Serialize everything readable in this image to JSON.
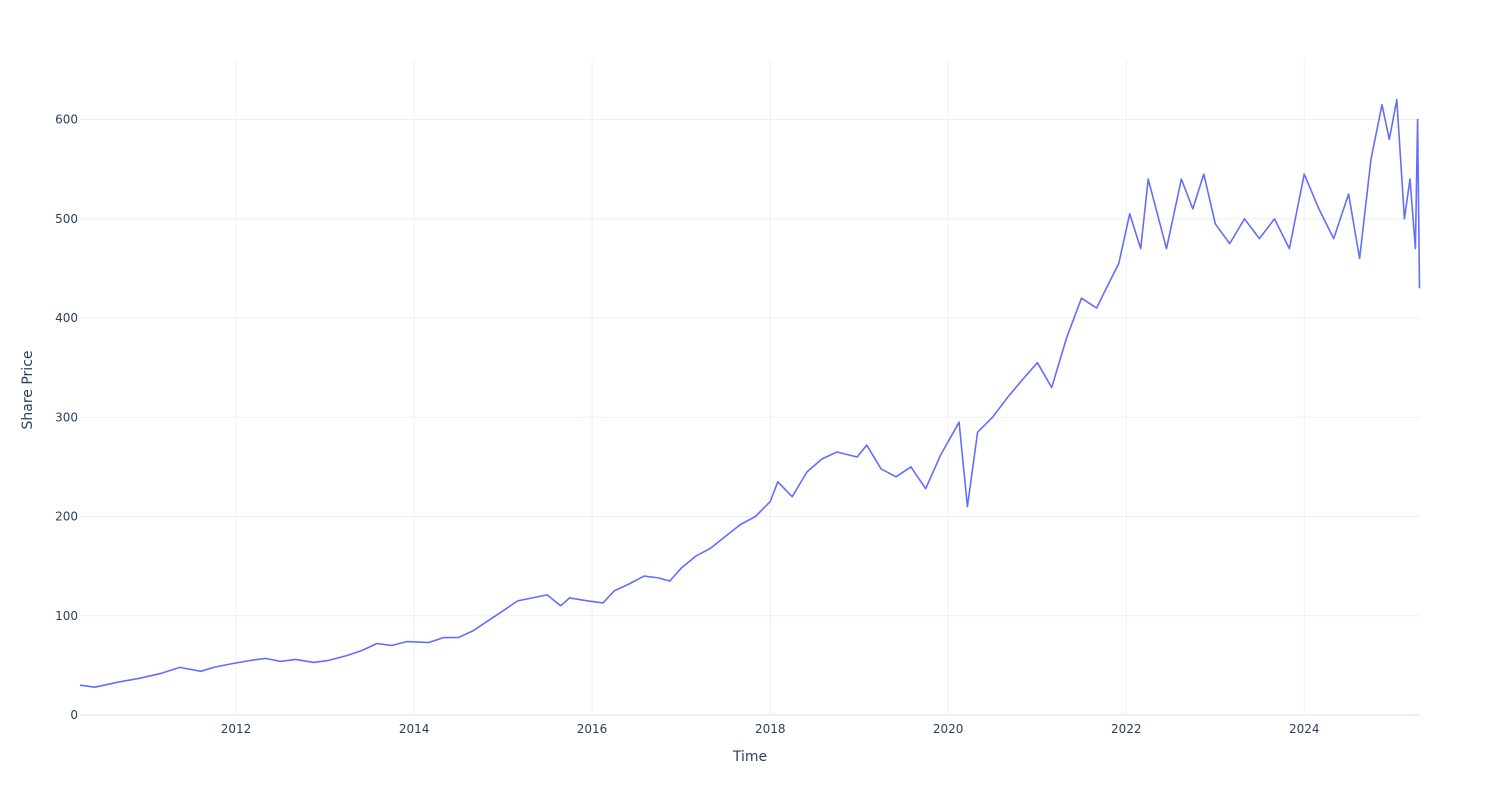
{
  "chart_data": {
    "type": "line",
    "xlabel": "Time",
    "ylabel": "Share Price",
    "x_range": [
      "2010-04-01",
      "2025-04-20"
    ],
    "ylim": [
      0,
      660
    ],
    "x_ticks": [
      "2012",
      "2014",
      "2016",
      "2018",
      "2020",
      "2022",
      "2024"
    ],
    "y_ticks": [
      "0",
      "100",
      "200",
      "300",
      "400",
      "500",
      "600"
    ],
    "grid": true,
    "line_color": "#636efa",
    "series": [
      {
        "x": [
          "2010-04-01",
          "2010-06-01",
          "2010-09-01",
          "2010-12-01",
          "2011-03-01",
          "2011-05-15",
          "2011-08-10",
          "2011-10-01",
          "2011-12-01",
          "2012-03-01",
          "2012-05-01",
          "2012-07-01",
          "2012-09-01",
          "2012-11-15",
          "2013-01-15",
          "2013-04-01",
          "2013-06-01",
          "2013-08-01",
          "2013-10-01",
          "2013-12-01",
          "2014-03-01",
          "2014-05-01",
          "2014-07-01",
          "2014-09-01",
          "2014-11-01",
          "2015-01-01",
          "2015-03-01",
          "2015-05-01",
          "2015-07-01",
          "2015-08-25",
          "2015-10-01",
          "2015-12-15",
          "2016-02-15",
          "2016-04-01",
          "2016-06-01",
          "2016-08-01",
          "2016-10-01",
          "2016-11-15",
          "2017-01-01",
          "2017-03-01",
          "2017-05-01",
          "2017-07-01",
          "2017-09-01",
          "2017-11-01",
          "2018-01-01",
          "2018-02-01",
          "2018-04-01",
          "2018-06-01",
          "2018-08-01",
          "2018-10-01",
          "2018-12-24",
          "2019-02-01",
          "2019-04-01",
          "2019-06-01",
          "2019-08-01",
          "2019-10-01",
          "2019-12-01",
          "2020-02-15",
          "2020-03-20",
          "2020-05-01",
          "2020-07-01",
          "2020-09-01",
          "2020-11-01",
          "2021-01-01",
          "2021-03-01",
          "2021-05-01",
          "2021-07-01",
          "2021-09-01",
          "2021-10-01",
          "2021-12-01",
          "2022-01-15",
          "2022-03-01",
          "2022-04-01",
          "2022-06-15",
          "2022-08-15",
          "2022-10-01",
          "2022-11-15",
          "2023-01-01",
          "2023-03-01",
          "2023-05-01",
          "2023-07-01",
          "2023-09-01",
          "2023-11-01",
          "2024-01-01",
          "2024-03-01",
          "2024-05-01",
          "2024-07-01",
          "2024-08-15",
          "2024-10-01",
          "2024-11-15",
          "2024-12-15",
          "2025-01-15",
          "2025-02-15",
          "2025-03-10",
          "2025-04-01",
          "2025-04-10",
          "2025-04-18"
        ],
        "y": [
          30,
          28,
          33,
          37,
          42,
          48,
          44,
          48,
          51,
          55,
          57,
          54,
          56,
          53,
          55,
          60,
          65,
          72,
          70,
          74,
          73,
          78,
          78,
          85,
          95,
          105,
          115,
          118,
          121,
          110,
          118,
          115,
          113,
          125,
          132,
          140,
          138,
          135,
          148,
          160,
          168,
          180,
          192,
          200,
          215,
          235,
          220,
          245,
          258,
          265,
          260,
          272,
          248,
          240,
          250,
          228,
          262,
          295,
          210,
          285,
          300,
          320,
          338,
          355,
          330,
          380,
          420,
          410,
          425,
          455,
          505,
          470,
          540,
          470,
          540,
          510,
          545,
          495,
          475,
          500,
          480,
          500,
          470,
          545,
          510,
          480,
          525,
          460,
          560,
          615,
          580,
          620,
          500,
          540,
          470,
          600,
          430
        ]
      }
    ]
  }
}
